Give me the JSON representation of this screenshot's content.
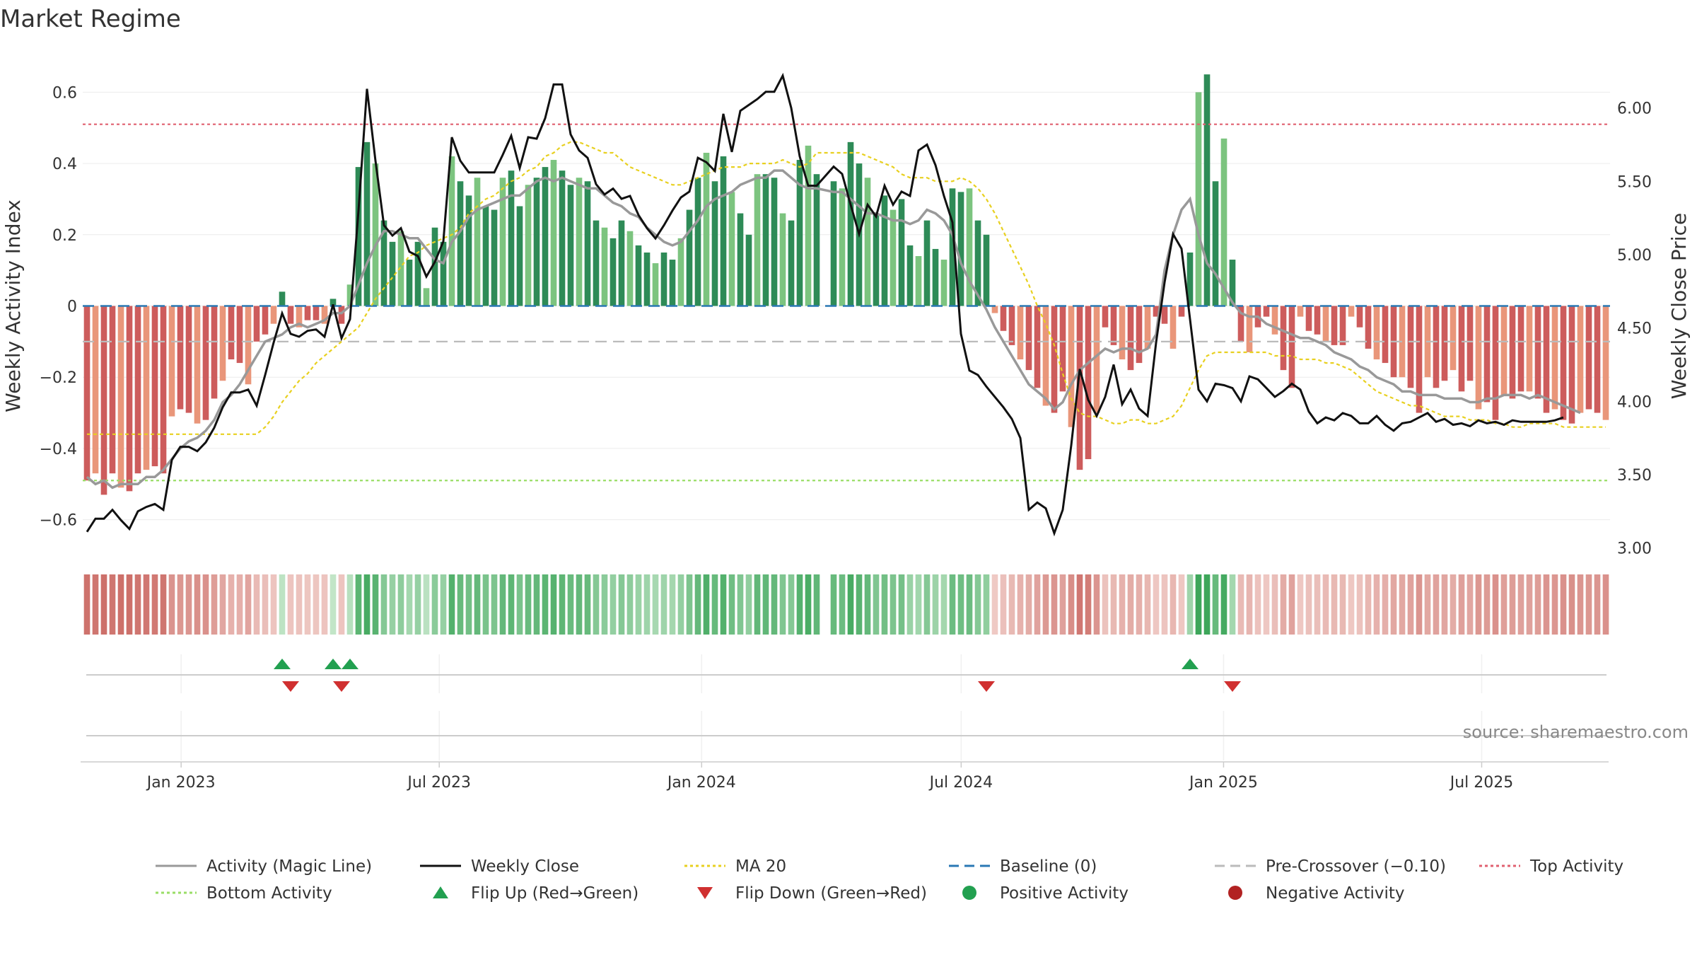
{
  "title": "Market Regime",
  "source": "source: sharemaestro.com",
  "colors": {
    "pos_dark": "#2e8b57",
    "pos_light": "#7cc47f",
    "neg_dark": "#cd5c5c",
    "neg_light": "#e9967a",
    "magic": "#999999",
    "close": "#111111",
    "ma20": "#e8d020",
    "baseline": "#2a78b4",
    "pre": "#bbbbbb",
    "top": "#e06070",
    "bottom": "#99dd66",
    "flip_up": "#22a050",
    "flip_down": "#d03030"
  },
  "legend": [
    {
      "label": "Activity (Magic Line)",
      "kind": "line",
      "color": "#999999",
      "dash": ""
    },
    {
      "label": "Weekly Close",
      "kind": "line",
      "color": "#111111",
      "dash": ""
    },
    {
      "label": "MA 20",
      "kind": "line",
      "color": "#e8d020",
      "dash": "4,4"
    },
    {
      "label": "Baseline (0)",
      "kind": "line",
      "color": "#2a78b4",
      "dash": "14,8"
    },
    {
      "label": "Pre-Crossover (−0.10)",
      "kind": "line",
      "color": "#bbbbbb",
      "dash": "14,8"
    },
    {
      "label": "Top Activity",
      "kind": "line",
      "color": "#e06070",
      "dash": "4,4"
    },
    {
      "label": "Bottom Activity",
      "kind": "line",
      "color": "#99dd66",
      "dash": "4,4"
    },
    {
      "label": "Flip Up (Red→Green)",
      "kind": "tri-up",
      "color": "#22a050",
      "dash": ""
    },
    {
      "label": "Flip Down (Green→Red)",
      "kind": "tri-down",
      "color": "#d03030",
      "dash": ""
    },
    {
      "label": "Positive Activity",
      "kind": "dot",
      "color": "#22a050",
      "dash": ""
    },
    {
      "label": "Negative Activity",
      "kind": "dot",
      "color": "#b22222",
      "dash": ""
    }
  ],
  "chart_data": {
    "type": "bar",
    "title": "Market Regime",
    "ylabel_left": "Weekly Activity Index",
    "ylabel_right": "Weekly Close Price",
    "ylim_left": [
      -0.7,
      0.7
    ],
    "ylim_right": [
      2.95,
      6.35
    ],
    "yticks_left": [
      -0.6,
      -0.4,
      -0.2,
      0,
      0.2,
      0.4,
      0.6
    ],
    "ytick_labels_left": [
      "−0.6",
      "−0.4",
      "−0.2",
      "0",
      "0.2",
      "0.4",
      "0.6"
    ],
    "yticks_right": [
      3.0,
      3.5,
      4.0,
      4.5,
      5.0,
      5.5,
      6.0
    ],
    "ytick_labels_right": [
      "3.00",
      "3.50",
      "4.00",
      "4.50",
      "5.00",
      "5.50",
      "6.00"
    ],
    "x_start": "2022-10-24",
    "x_end": "2025-09-29",
    "x_tick_labels": [
      "Jan 2023",
      "Jul 2023",
      "Jan 2024",
      "Jul 2024",
      "Jan 2025",
      "Jul 2025"
    ],
    "x_tick_dates": [
      "2023-01-01",
      "2023-07-01",
      "2024-01-01",
      "2024-07-01",
      "2025-01-01",
      "2025-07-01"
    ],
    "reference_lines": {
      "baseline": 0,
      "pre_crossover": -0.1,
      "top_activity": 0.51,
      "bottom_activity": -0.49
    },
    "gaps_after_week": [
      86
    ],
    "series": [
      {
        "name": "Weekly Activity Index",
        "values": [
          -0.49,
          -0.47,
          -0.53,
          -0.47,
          -0.51,
          -0.52,
          -0.47,
          -0.46,
          -0.45,
          -0.47,
          -0.31,
          -0.29,
          -0.3,
          -0.33,
          -0.32,
          -0.26,
          -0.21,
          -0.15,
          -0.16,
          -0.22,
          -0.1,
          -0.08,
          -0.05,
          0.04,
          -0.05,
          -0.06,
          -0.04,
          -0.04,
          -0.05,
          0.02,
          -0.05,
          0.06,
          0.39,
          0.46,
          0.4,
          0.24,
          0.18,
          0.21,
          0.13,
          0.18,
          0.05,
          0.22,
          0.18,
          0.42,
          0.35,
          0.31,
          0.36,
          0.28,
          0.27,
          0.36,
          0.38,
          0.28,
          0.34,
          0.36,
          0.39,
          0.41,
          0.38,
          0.34,
          0.36,
          0.35,
          0.24,
          0.22,
          0.19,
          0.24,
          0.21,
          0.17,
          0.15,
          0.12,
          0.15,
          0.13,
          0.19,
          0.27,
          0.36,
          0.43,
          0.35,
          0.42,
          0.32,
          0.26,
          0.2,
          0.37,
          0.37,
          0.36,
          0.26,
          0.24,
          0.41,
          0.45,
          0.37,
          0.35,
          0.33,
          0.46,
          0.4,
          0.36,
          0.26,
          0.31,
          0.27,
          0.3,
          0.17,
          0.14,
          0.24,
          0.16,
          0.13,
          0.33,
          0.32,
          0.33,
          0.24,
          0.2,
          -0.02,
          -0.07,
          -0.11,
          -0.15,
          -0.18,
          -0.23,
          -0.28,
          -0.3,
          -0.24,
          -0.34,
          -0.46,
          -0.43,
          -0.3,
          -0.06,
          -0.11,
          -0.15,
          -0.18,
          -0.16,
          -0.12,
          -0.03,
          -0.05,
          -0.12,
          -0.03,
          0.15,
          0.6,
          0.65,
          0.35,
          0.47,
          0.13,
          -0.1,
          -0.13,
          -0.06,
          -0.03,
          -0.08,
          -0.18,
          -0.23,
          -0.03,
          -0.07,
          -0.08,
          -0.1,
          -0.11,
          -0.11,
          -0.03,
          -0.06,
          -0.12,
          -0.15,
          -0.16,
          -0.2,
          -0.2,
          -0.23,
          -0.3,
          -0.2,
          -0.23,
          -0.21,
          -0.18,
          -0.24,
          -0.21,
          -0.29,
          -0.27,
          -0.32,
          -0.25,
          -0.26,
          -0.24,
          -0.24,
          -0.26,
          -0.3,
          -0.29,
          -0.32,
          -0.33,
          -0.3,
          -0.29,
          -0.3,
          -0.32
        ]
      },
      {
        "name": "Activity (Magic Line)",
        "values": [
          -0.48,
          -0.5,
          -0.49,
          -0.51,
          -0.5,
          -0.5,
          -0.5,
          -0.48,
          -0.48,
          -0.46,
          -0.43,
          -0.4,
          -0.38,
          -0.37,
          -0.35,
          -0.32,
          -0.27,
          -0.25,
          -0.22,
          -0.18,
          -0.14,
          -0.1,
          -0.09,
          -0.08,
          -0.06,
          -0.05,
          -0.06,
          -0.05,
          -0.04,
          -0.02,
          -0.02,
          0.0,
          0.06,
          0.12,
          0.17,
          0.21,
          0.21,
          0.2,
          0.19,
          0.19,
          0.16,
          0.13,
          0.12,
          0.18,
          0.21,
          0.25,
          0.27,
          0.28,
          0.29,
          0.3,
          0.31,
          0.31,
          0.33,
          0.35,
          0.36,
          0.35,
          0.36,
          0.35,
          0.34,
          0.33,
          0.33,
          0.31,
          0.29,
          0.28,
          0.26,
          0.25,
          0.22,
          0.2,
          0.18,
          0.17,
          0.18,
          0.21,
          0.24,
          0.28,
          0.3,
          0.31,
          0.32,
          0.34,
          0.35,
          0.36,
          0.36,
          0.38,
          0.38,
          0.36,
          0.34,
          0.33,
          0.33,
          0.32,
          0.32,
          0.3,
          0.28,
          0.26,
          0.26,
          0.25,
          0.24,
          0.24,
          0.23,
          0.24,
          0.27,
          0.26,
          0.24,
          0.2,
          0.12,
          0.07,
          0.03,
          -0.01,
          -0.06,
          -0.1,
          -0.14,
          -0.18,
          -0.22,
          -0.24,
          -0.26,
          -0.29,
          -0.27,
          -0.22,
          -0.18,
          -0.16,
          -0.14,
          -0.12,
          -0.13,
          -0.12,
          -0.12,
          -0.13,
          -0.12,
          -0.08,
          0.1,
          0.2,
          0.27,
          0.3,
          0.2,
          0.12,
          0.09,
          0.05,
          0.01,
          -0.02,
          -0.03,
          -0.03,
          -0.05,
          -0.06,
          -0.07,
          -0.08,
          -0.09,
          -0.09,
          -0.1,
          -0.11,
          -0.13,
          -0.14,
          -0.15,
          -0.17,
          -0.18,
          -0.2,
          -0.21,
          -0.22,
          -0.24,
          -0.24,
          -0.25,
          -0.25,
          -0.25,
          -0.26,
          -0.26,
          -0.26,
          -0.27,
          -0.27,
          -0.26,
          -0.26,
          -0.25,
          -0.25,
          -0.25,
          -0.26,
          -0.25,
          -0.26,
          -0.27,
          -0.28,
          -0.29,
          -0.3
        ]
      },
      {
        "name": "MA 20",
        "values": [
          -0.36,
          -0.36,
          -0.36,
          -0.36,
          -0.36,
          -0.36,
          -0.36,
          -0.36,
          -0.36,
          -0.36,
          -0.36,
          -0.36,
          -0.36,
          -0.36,
          -0.36,
          -0.36,
          -0.36,
          -0.36,
          -0.36,
          -0.36,
          -0.36,
          -0.34,
          -0.31,
          -0.27,
          -0.24,
          -0.21,
          -0.19,
          -0.16,
          -0.14,
          -0.12,
          -0.1,
          -0.08,
          -0.06,
          -0.02,
          0.02,
          0.05,
          0.08,
          0.11,
          0.14,
          0.15,
          0.17,
          0.18,
          0.19,
          0.2,
          0.22,
          0.26,
          0.28,
          0.3,
          0.31,
          0.33,
          0.35,
          0.36,
          0.38,
          0.39,
          0.42,
          0.43,
          0.45,
          0.46,
          0.46,
          0.45,
          0.44,
          0.43,
          0.43,
          0.41,
          0.39,
          0.38,
          0.37,
          0.36,
          0.35,
          0.34,
          0.34,
          0.35,
          0.36,
          0.37,
          0.38,
          0.39,
          0.39,
          0.39,
          0.4,
          0.4,
          0.4,
          0.4,
          0.41,
          0.4,
          0.39,
          0.4,
          0.43,
          0.43,
          0.43,
          0.43,
          0.43,
          0.42,
          0.41,
          0.4,
          0.39,
          0.37,
          0.36,
          0.36,
          0.36,
          0.35,
          0.35,
          0.35,
          0.36,
          0.35,
          0.33,
          0.3,
          0.26,
          0.21,
          0.16,
          0.11,
          0.06,
          0.0,
          -0.05,
          -0.11,
          -0.19,
          -0.26,
          -0.3,
          -0.31,
          -0.31,
          -0.32,
          -0.33,
          -0.33,
          -0.32,
          -0.32,
          -0.33,
          -0.33,
          -0.32,
          -0.31,
          -0.28,
          -0.23,
          -0.18,
          -0.14,
          -0.13,
          -0.13,
          -0.13,
          -0.13,
          -0.13,
          -0.13,
          -0.13,
          -0.14,
          -0.14,
          -0.14,
          -0.15,
          -0.15,
          -0.15,
          -0.16,
          -0.16,
          -0.17,
          -0.18,
          -0.2,
          -0.22,
          -0.24,
          -0.25,
          -0.26,
          -0.27,
          -0.28,
          -0.28,
          -0.29,
          -0.3,
          -0.31,
          -0.31,
          -0.31,
          -0.32,
          -0.32,
          -0.32,
          -0.33,
          -0.33,
          -0.34,
          -0.34,
          -0.33,
          -0.33,
          -0.33,
          -0.33,
          -0.34,
          -0.34,
          -0.34,
          -0.34,
          -0.34,
          -0.34
        ]
      },
      {
        "name": "Weekly Close",
        "values": [
          3.11,
          3.2,
          3.2,
          3.26,
          3.19,
          3.13,
          3.25,
          3.28,
          3.3,
          3.26,
          3.6,
          3.69,
          3.69,
          3.66,
          3.72,
          3.82,
          3.96,
          4.06,
          4.06,
          4.08,
          3.97,
          4.18,
          4.4,
          4.6,
          4.46,
          4.44,
          4.48,
          4.49,
          4.44,
          4.66,
          4.43,
          4.56,
          5.3,
          6.13,
          5.64,
          5.2,
          5.13,
          5.18,
          5.02,
          4.99,
          4.85,
          4.95,
          5.09,
          5.8,
          5.64,
          5.56,
          5.56,
          5.56,
          5.56,
          5.68,
          5.81,
          5.59,
          5.8,
          5.79,
          5.93,
          6.16,
          6.16,
          5.82,
          5.71,
          5.66,
          5.48,
          5.41,
          5.45,
          5.38,
          5.4,
          5.27,
          5.18,
          5.11,
          5.2,
          5.3,
          5.39,
          5.43,
          5.66,
          5.63,
          5.57,
          5.96,
          5.7,
          5.98,
          6.02,
          6.06,
          6.11,
          6.11,
          6.22,
          6.0,
          5.67,
          5.47,
          5.47,
          5.6,
          5.55,
          5.34,
          5.14,
          5.34,
          5.26,
          5.47,
          5.34,
          5.43,
          5.4,
          5.71,
          5.75,
          5.61,
          5.4,
          5.22,
          4.46,
          4.21,
          4.18,
          4.1,
          4.03,
          3.96,
          3.88,
          3.75,
          3.26,
          3.31,
          3.27,
          3.1,
          3.26,
          3.7,
          4.22,
          4.01,
          3.9,
          4.03,
          4.25,
          3.98,
          4.08,
          3.95,
          3.9,
          4.4,
          4.81,
          5.14,
          5.04,
          4.56,
          4.08,
          4.0,
          4.12,
          4.11,
          4.09,
          4.0,
          4.17,
          4.15,
          4.09,
          4.03,
          4.07,
          4.12,
          4.08,
          3.93,
          3.85,
          3.89,
          3.87,
          3.92,
          3.9,
          3.85,
          3.85,
          3.9,
          3.84,
          3.8,
          3.85,
          3.86,
          3.89,
          3.92,
          3.86,
          3.88,
          3.84,
          3.85,
          3.83,
          3.87,
          3.85,
          3.86,
          3.84,
          3.87,
          3.86,
          3.86,
          3.86,
          3.86,
          3.87,
          3.89
        ]
      }
    ],
    "flip_up_weeks": [
      23,
      29,
      31,
      129
    ],
    "flip_down_weeks": [
      24,
      30,
      105,
      134
    ]
  }
}
